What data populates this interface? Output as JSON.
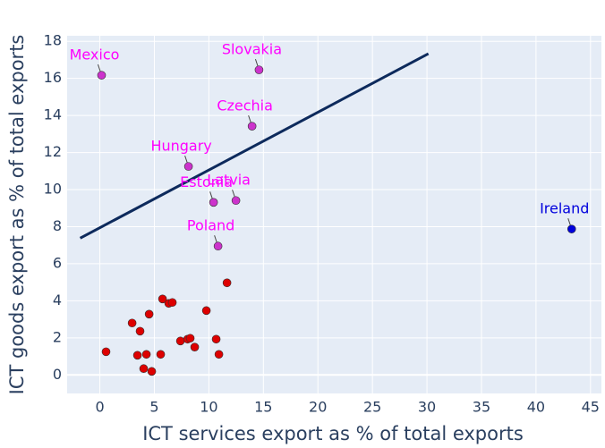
{
  "chart_data": {
    "type": "scatter",
    "x_label": "ICT services export as % of total exports",
    "y_label": "ICT goods export as % of total exports",
    "xlim": [
      -3,
      46
    ],
    "xticks": [
      0,
      5,
      10,
      15,
      20,
      25,
      30,
      35,
      40,
      45
    ],
    "ylim": [
      -1,
      18.3
    ],
    "yticks": [
      0,
      2,
      4,
      6,
      8,
      10,
      12,
      14,
      16,
      18
    ],
    "grid": true,
    "series": [
      {
        "color": "#dd0000",
        "x": [
          0.57,
          2.96,
          3.69,
          4.52,
          3.45,
          4.02,
          4.27,
          4.76,
          5.75,
          6.32,
          6.65,
          5.58,
          7.39,
          8.05,
          8.29,
          8.7,
          9.77,
          10.67,
          10.92,
          11.66
        ],
        "values": [
          1.25,
          2.8,
          2.36,
          3.28,
          1.06,
          0.34,
          1.11,
          0.19,
          4.1,
          3.86,
          3.91,
          1.11,
          1.83,
          1.93,
          1.98,
          1.5,
          3.47,
          1.93,
          1.11,
          4.97
        ]
      }
    ],
    "labeled_points": [
      {
        "label": "Mexico",
        "x": 0.16,
        "y": 16.17,
        "color": "#cc33cc"
      },
      {
        "label": "Slovakia",
        "x": 14.6,
        "y": 16.46,
        "color": "#cc33cc"
      },
      {
        "label": "Czechia",
        "x": 13.96,
        "y": 13.42,
        "color": "#cc33cc"
      },
      {
        "label": "Hungary",
        "x": 8.13,
        "y": 11.25,
        "color": "#cc33cc"
      },
      {
        "label": "Estonia",
        "x": 10.43,
        "y": 9.31,
        "color": "#cc33cc"
      },
      {
        "label": "Latvia",
        "x": 12.48,
        "y": 9.41,
        "color": "#cc33cc"
      },
      {
        "label": "Poland",
        "x": 10.84,
        "y": 6.95,
        "color": "#cc33cc"
      },
      {
        "label": "Ireland",
        "x": 43.27,
        "y": 7.87,
        "color": "#0000dd"
      }
    ],
    "trendline": {
      "color": "#0d2a5c",
      "x": [
        -1.8,
        30.13
      ],
      "values": [
        7.38,
        17.33
      ]
    }
  }
}
